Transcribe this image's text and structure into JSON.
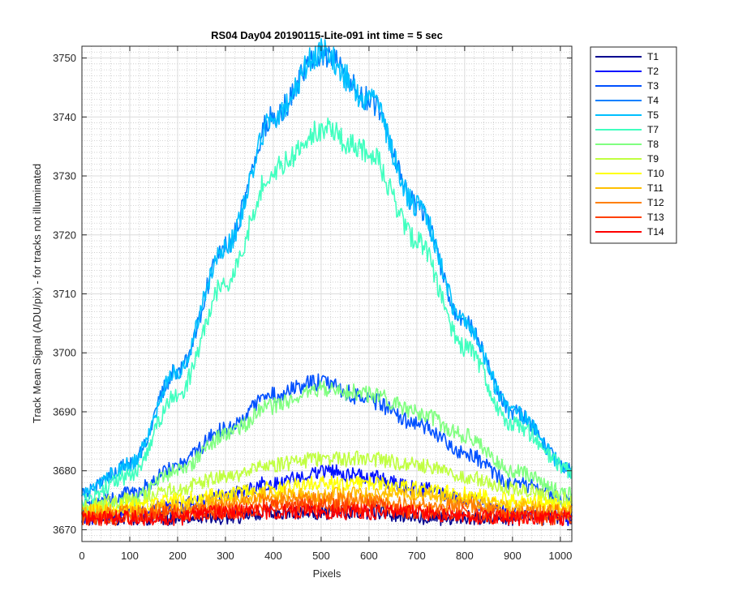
{
  "chart_data": {
    "type": "line",
    "title": "RS04 Day04 20190115-Lite-091 int time = 5 sec",
    "xlabel": "Pixels",
    "ylabel": "Track Mean Signal (ADU/pix) - for tracks not illuminated",
    "xlim": [
      0,
      1024
    ],
    "ylim": [
      3668,
      3752
    ],
    "xticks": [
      0,
      100,
      200,
      300,
      400,
      500,
      600,
      700,
      800,
      900,
      1000
    ],
    "yticks": [
      3670,
      3680,
      3690,
      3700,
      3710,
      3720,
      3730,
      3740,
      3750
    ],
    "grid": "major and minor",
    "legend_position": "outside-top-right",
    "x": [
      0,
      100,
      200,
      300,
      400,
      500,
      600,
      700,
      800,
      900,
      1024
    ],
    "series": [
      {
        "name": "T1",
        "color": "#00008f",
        "values": [
          3672,
          3672,
          3672,
          3672,
          3673,
          3673,
          3673,
          3672,
          3672,
          3672,
          3672
        ]
      },
      {
        "name": "T2",
        "color": "#0010ff",
        "values": [
          3672,
          3673,
          3674,
          3676,
          3678,
          3680,
          3679,
          3677,
          3675,
          3673,
          3672
        ]
      },
      {
        "name": "T3",
        "color": "#0050ff",
        "values": [
          3674,
          3676,
          3681,
          3687,
          3693,
          3695,
          3692,
          3688,
          3683,
          3678,
          3675
        ]
      },
      {
        "name": "T4",
        "color": "#0080ff",
        "values": [
          3676,
          3681,
          3697,
          3718,
          3740,
          3751,
          3743,
          3725,
          3705,
          3690,
          3680
        ]
      },
      {
        "name": "T5",
        "color": "#00c0ff",
        "values": [
          3676,
          3681,
          3697,
          3718,
          3740,
          3751,
          3743,
          3725,
          3705,
          3690,
          3680
        ]
      },
      {
        "name": "T7",
        "color": "#40ffbf",
        "values": [
          3675,
          3679,
          3693,
          3712,
          3731,
          3738,
          3734,
          3719,
          3701,
          3688,
          3680
        ]
      },
      {
        "name": "T8",
        "color": "#80ff80",
        "values": [
          3673,
          3675,
          3680,
          3686,
          3691,
          3694,
          3693,
          3690,
          3686,
          3680,
          3676
        ]
      },
      {
        "name": "T9",
        "color": "#c0ff40",
        "values": [
          3674,
          3675,
          3677,
          3679,
          3681,
          3682,
          3682,
          3681,
          3679,
          3677,
          3675
        ]
      },
      {
        "name": "T10",
        "color": "#ffff00",
        "values": [
          3673,
          3674,
          3675,
          3676,
          3677,
          3678,
          3678,
          3677,
          3676,
          3675,
          3674
        ]
      },
      {
        "name": "T11",
        "color": "#ffc000",
        "values": [
          3673,
          3673,
          3674,
          3675,
          3676,
          3676,
          3676,
          3676,
          3675,
          3674,
          3673
        ]
      },
      {
        "name": "T12",
        "color": "#ff8000",
        "values": [
          3672,
          3673,
          3673,
          3674,
          3675,
          3675,
          3675,
          3674,
          3674,
          3673,
          3673
        ]
      },
      {
        "name": "T13",
        "color": "#ff4000",
        "values": [
          3672,
          3672,
          3673,
          3673,
          3674,
          3674,
          3674,
          3673,
          3673,
          3672,
          3672
        ]
      },
      {
        "name": "T14",
        "color": "#ff0000",
        "values": [
          3672,
          3672,
          3672,
          3673,
          3673,
          3673,
          3673,
          3673,
          3672,
          3672,
          3672
        ]
      }
    ]
  }
}
